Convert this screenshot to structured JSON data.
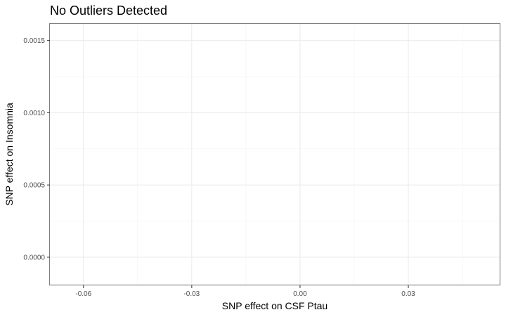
{
  "chart_data": {
    "type": "scatter",
    "title": "No Outliers Detected",
    "xlabel": "SNP effect on CSF Ptau",
    "ylabel": "SNP effect on Insomnia",
    "xlim": [
      -0.0693,
      0.0555
    ],
    "ylim": [
      -0.000195,
      0.001615
    ],
    "x_ticks": [
      -0.06,
      -0.03,
      0.0,
      0.03
    ],
    "x_tick_labels": [
      "-0.06",
      "-0.03",
      "0.00",
      "0.03"
    ],
    "y_ticks": [
      0.0,
      0.0005,
      0.001,
      0.0015
    ],
    "y_tick_labels": [
      "0.0000",
      "0.0005",
      "0.0010",
      "0.0015"
    ],
    "grid": true,
    "points": []
  }
}
